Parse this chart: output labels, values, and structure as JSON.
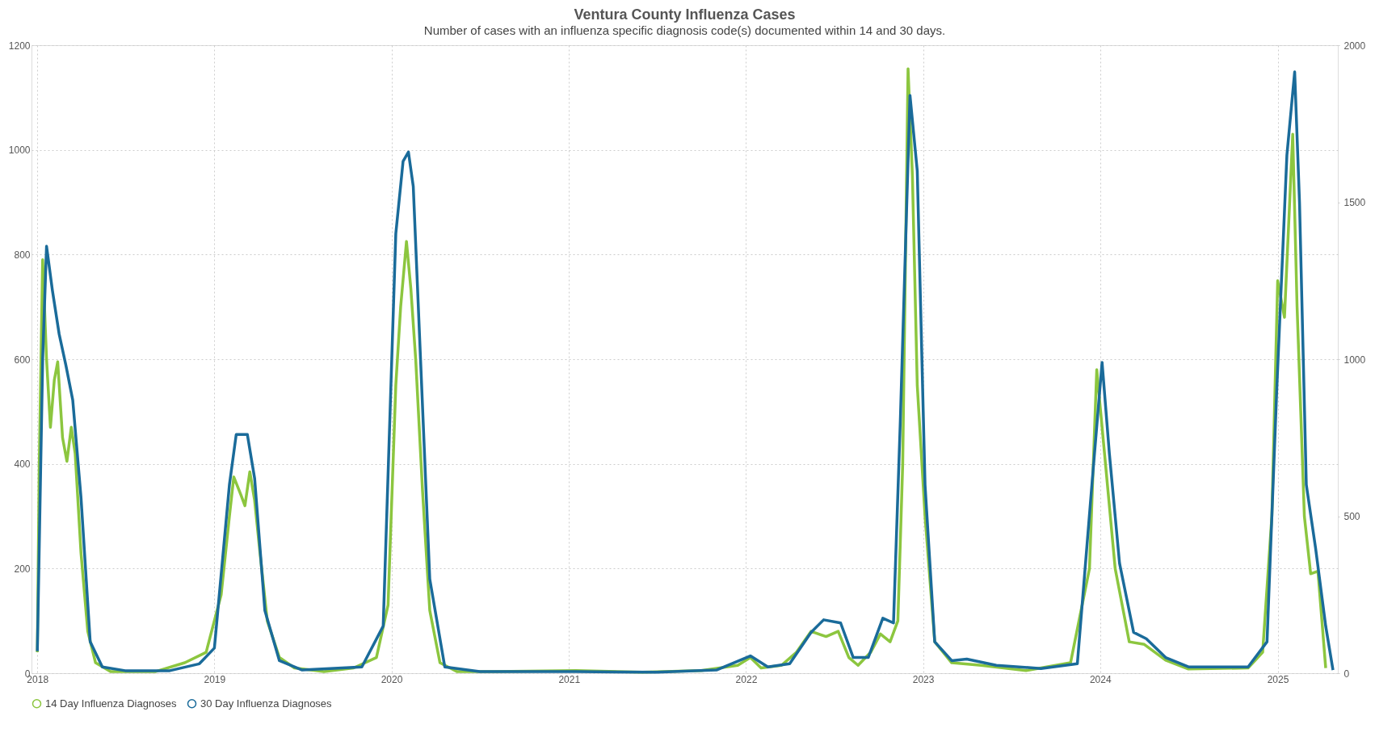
{
  "chart_data": {
    "type": "line",
    "title": "Ventura County Influenza Cases",
    "subtitle": "Number of cases with an influenza specific diagnosis code(s) documented within 14 and 30 days.",
    "xlim": [
      "2017-12-20",
      "2025-05-05"
    ],
    "xticks": [
      {
        "value": "2018-01-01",
        "label": "2018"
      },
      {
        "value": "2019-01-01",
        "label": "2019"
      },
      {
        "value": "2020-01-01",
        "label": "2020"
      },
      {
        "value": "2021-01-01",
        "label": "2021"
      },
      {
        "value": "2022-01-01",
        "label": "2022"
      },
      {
        "value": "2023-01-01",
        "label": "2023"
      },
      {
        "value": "2024-01-01",
        "label": "2024"
      },
      {
        "value": "2025-01-01",
        "label": "2025"
      }
    ],
    "ylim": [
      0,
      1200
    ],
    "yticks": [
      0,
      200,
      400,
      600,
      800,
      1000,
      1200
    ],
    "y2lim": [
      0,
      2000
    ],
    "y2ticks": [
      0,
      500,
      1000,
      1500,
      2000
    ],
    "grid": true,
    "legend": "bottom",
    "marker": "none",
    "line_style": "solid",
    "series": [
      {
        "name": "14 Day Influenza Diagnoses",
        "color": "#8cc63f",
        "x": [
          "2018-01-01",
          "2018-01-05",
          "2018-01-12",
          "2018-01-20",
          "2018-01-28",
          "2018-02-05",
          "2018-02-12",
          "2018-02-22",
          "2018-03-03",
          "2018-03-12",
          "2018-03-20",
          "2018-04-01",
          "2018-04-15",
          "2018-05-01",
          "2018-06-01",
          "2018-09-01",
          "2018-11-01",
          "2018-12-15",
          "2019-01-15",
          "2019-02-01",
          "2019-02-10",
          "2019-02-25",
          "2019-03-05",
          "2019-03-15",
          "2019-03-25",
          "2019-04-05",
          "2019-04-20",
          "2019-05-15",
          "2019-06-15",
          "2019-08-15",
          "2019-10-15",
          "2019-12-01",
          "2019-12-25",
          "2020-01-10",
          "2020-01-20",
          "2020-02-01",
          "2020-02-10",
          "2020-02-20",
          "2020-03-05",
          "2020-03-20",
          "2020-04-10",
          "2020-05-15",
          "2020-08-01",
          "2021-01-15",
          "2021-06-01",
          "2021-10-01",
          "2021-12-15",
          "2022-01-10",
          "2022-02-01",
          "2022-03-15",
          "2022-04-15",
          "2022-05-15",
          "2022-06-15",
          "2022-07-10",
          "2022-08-01",
          "2022-08-20",
          "2022-09-15",
          "2022-10-05",
          "2022-10-25",
          "2022-11-10",
          "2022-11-20",
          "2022-12-01",
          "2022-12-10",
          "2022-12-20",
          "2023-01-05",
          "2023-01-25",
          "2023-03-01",
          "2023-05-01",
          "2023-08-01",
          "2023-11-01",
          "2023-12-10",
          "2023-12-25",
          "2024-01-10",
          "2024-02-01",
          "2024-03-01",
          "2024-04-01",
          "2024-05-15",
          "2024-07-01",
          "2024-11-01",
          "2024-12-01",
          "2024-12-20",
          "2025-01-01",
          "2025-01-15",
          "2025-02-01",
          "2025-02-10",
          "2025-02-25",
          "2025-03-10",
          "2025-03-25",
          "2025-04-10"
        ],
        "values": [
          40,
          400,
          790,
          600,
          470,
          560,
          595,
          450,
          405,
          470,
          420,
          230,
          80,
          20,
          3,
          3,
          20,
          40,
          150,
          300,
          375,
          340,
          320,
          385,
          330,
          230,
          100,
          30,
          10,
          3,
          10,
          30,
          130,
          550,
          700,
          825,
          735,
          600,
          350,
          120,
          20,
          3,
          3,
          5,
          2,
          5,
          15,
          30,
          10,
          15,
          40,
          80,
          70,
          80,
          30,
          15,
          40,
          75,
          60,
          100,
          400,
          1155,
          950,
          550,
          300,
          60,
          20,
          15,
          5,
          20,
          200,
          580,
          420,
          200,
          60,
          55,
          25,
          8,
          10,
          40,
          300,
          750,
          680,
          1030,
          700,
          300,
          190,
          195,
          10
        ]
      },
      {
        "name": "30 Day Influenza Diagnoses",
        "color": "#1a6b9a",
        "axis": "y2",
        "x": [
          "2018-01-01",
          "2018-01-12",
          "2018-01-20",
          "2018-02-01",
          "2018-02-15",
          "2018-03-01",
          "2018-03-15",
          "2018-04-01",
          "2018-04-20",
          "2018-05-15",
          "2018-07-01",
          "2018-10-01",
          "2018-12-01",
          "2019-01-01",
          "2019-02-01",
          "2019-02-15",
          "2019-03-10",
          "2019-03-25",
          "2019-04-15",
          "2019-05-15",
          "2019-07-01",
          "2019-11-01",
          "2019-12-15",
          "2020-01-10",
          "2020-01-25",
          "2020-02-05",
          "2020-02-15",
          "2020-03-01",
          "2020-03-20",
          "2020-04-20",
          "2020-07-01",
          "2021-01-15",
          "2021-07-01",
          "2021-11-01",
          "2022-01-10",
          "2022-02-15",
          "2022-04-01",
          "2022-05-15",
          "2022-06-10",
          "2022-07-15",
          "2022-08-10",
          "2022-09-10",
          "2022-10-10",
          "2022-11-01",
          "2022-11-15",
          "2022-12-05",
          "2022-12-20",
          "2023-01-05",
          "2023-01-25",
          "2023-03-01",
          "2023-04-01",
          "2023-06-01",
          "2023-09-01",
          "2023-11-15",
          "2023-12-15",
          "2024-01-05",
          "2024-01-20",
          "2024-02-10",
          "2024-03-10",
          "2024-04-05",
          "2024-05-15",
          "2024-07-01",
          "2024-11-01",
          "2024-12-10",
          "2024-12-30",
          "2025-01-20",
          "2025-02-05",
          "2025-02-15",
          "2025-03-01",
          "2025-03-20",
          "2025-04-10",
          "2025-04-25"
        ],
        "values": [
          70,
          1000,
          1360,
          1220,
          1080,
          980,
          870,
          560,
          100,
          20,
          8,
          8,
          30,
          80,
          600,
          760,
          760,
          620,
          200,
          40,
          10,
          20,
          150,
          1400,
          1630,
          1660,
          1550,
          1000,
          300,
          20,
          5,
          5,
          3,
          10,
          55,
          20,
          30,
          130,
          170,
          160,
          50,
          50,
          175,
          160,
          800,
          1840,
          1600,
          600,
          100,
          40,
          45,
          25,
          15,
          30,
          600,
          990,
          700,
          350,
          130,
          110,
          50,
          20,
          20,
          100,
          900,
          1650,
          1915,
          1500,
          600,
          400,
          150,
          10
        ]
      }
    ]
  }
}
